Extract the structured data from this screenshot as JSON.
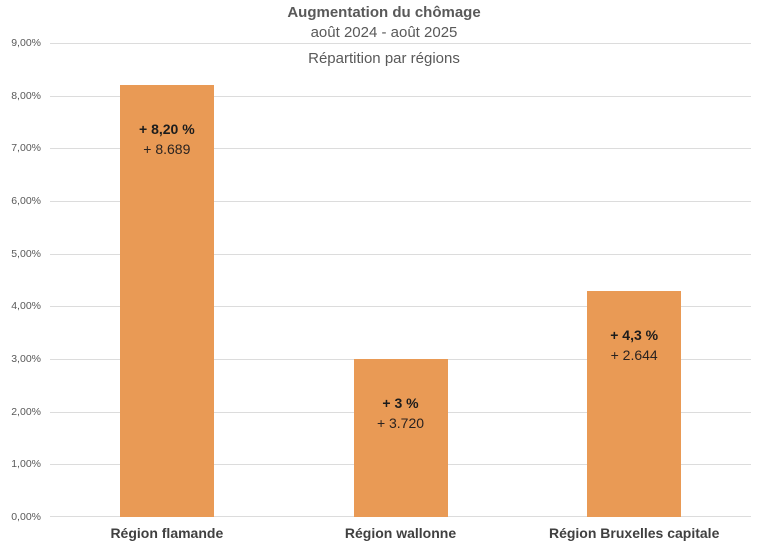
{
  "title": {
    "line1": "Augmentation du chômage",
    "line2": "août 2024 - août 2025",
    "line3": "Répartition par régions"
  },
  "chart_data": {
    "type": "bar",
    "title": "Augmentation du chômage",
    "subtitle": "août 2024 - août 2025",
    "subtitle2": "Répartition par régions",
    "categories": [
      "Région flamande",
      "Région wallonne",
      "Région Bruxelles capitale"
    ],
    "values": [
      8.2,
      3.0,
      4.3
    ],
    "bars": [
      {
        "category": "Région flamande",
        "value": 8.2,
        "pct_label": "+ 8,20 %",
        "count_label": "+ 8.689"
      },
      {
        "category": "Région wallonne",
        "value": 3.0,
        "pct_label": "+ 3 %",
        "count_label": "+ 3.720"
      },
      {
        "category": "Région Bruxelles capitale",
        "value": 4.3,
        "pct_label": "+ 4,3 %",
        "count_label": "+ 2.644"
      }
    ],
    "xlabel": "",
    "ylabel": "",
    "ylim": [
      0,
      9
    ],
    "ytick_labels": [
      "0,00%",
      "1,00%",
      "2,00%",
      "3,00%",
      "4,00%",
      "5,00%",
      "6,00%",
      "7,00%",
      "8,00%",
      "9,00%"
    ],
    "grid": true,
    "legend": false,
    "bar_color": "#e99a55",
    "gridline_color": "#dcdcdc",
    "title_color": "#595959",
    "label_position": "inside-top"
  }
}
